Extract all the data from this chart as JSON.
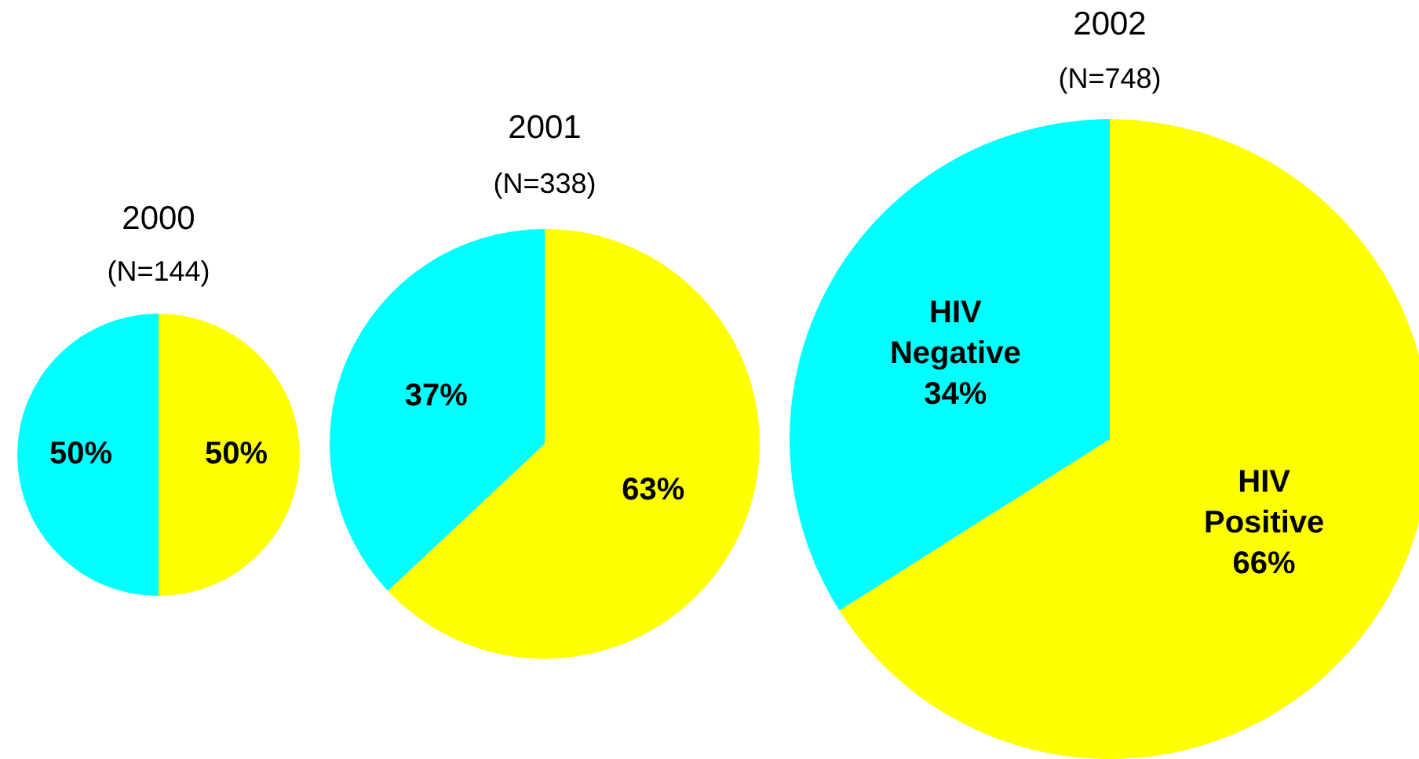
{
  "chart_data": [
    {
      "type": "pie",
      "title": "2000",
      "subtitle": "(N=144)",
      "categories": [
        null,
        null
      ],
      "values": [
        50,
        50
      ],
      "colors": [
        "#ffff00",
        "#00ffff"
      ],
      "value_labels": [
        "50%",
        "50%"
      ],
      "legend": false
    },
    {
      "type": "pie",
      "title": "2001",
      "subtitle": "(N=338)",
      "categories": [
        null,
        null
      ],
      "values": [
        63,
        37
      ],
      "colors": [
        "#ffff00",
        "#00ffff"
      ],
      "value_labels": [
        "63%",
        "37%"
      ],
      "legend": false
    },
    {
      "type": "pie",
      "title": "2002",
      "subtitle": "(N=748)",
      "categories": [
        "HIV Positive",
        "HIV Negative"
      ],
      "values": [
        66,
        34
      ],
      "colors": [
        "#ffff00",
        "#00ffff"
      ],
      "value_labels": [
        "66%",
        "34%"
      ],
      "legend": false
    }
  ]
}
